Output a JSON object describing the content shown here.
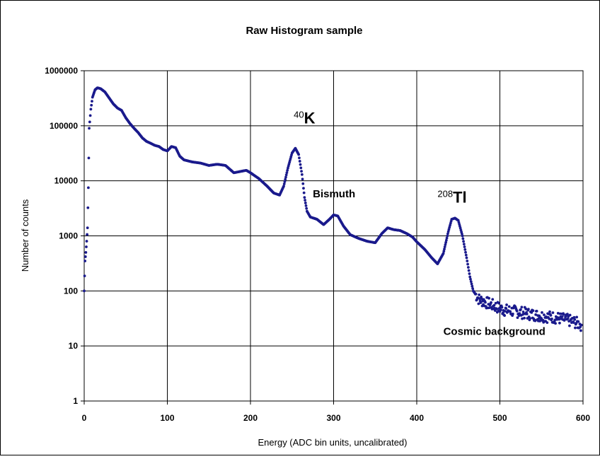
{
  "chart_data": {
    "type": "scatter",
    "title": "Raw Histogram sample",
    "xlabel": "Energy (ADC bin units, uncalibrated)",
    "ylabel": "Number of counts",
    "xlim": [
      0,
      600
    ],
    "ylim": [
      1,
      1000000
    ],
    "yscale": "log",
    "grid": true,
    "x_ticks": [
      "0",
      "100",
      "200",
      "300",
      "400",
      "500",
      "600"
    ],
    "y_ticks": [
      "1",
      "10",
      "100",
      "1000",
      "10000",
      "100000",
      "1000000"
    ],
    "marker_color": "#1a1a8c",
    "series_points": [
      [
        0,
        100
      ],
      [
        1,
        350
      ],
      [
        2,
        500
      ],
      [
        3,
        800
      ],
      [
        4,
        1400
      ],
      [
        5,
        7500
      ],
      [
        6,
        90000
      ],
      [
        8,
        200000
      ],
      [
        10,
        330000
      ],
      [
        13,
        450000
      ],
      [
        16,
        490000
      ],
      [
        20,
        470000
      ],
      [
        25,
        410000
      ],
      [
        30,
        320000
      ],
      [
        35,
        250000
      ],
      [
        40,
        210000
      ],
      [
        45,
        190000
      ],
      [
        50,
        140000
      ],
      [
        55,
        110000
      ],
      [
        60,
        90000
      ],
      [
        65,
        75000
      ],
      [
        70,
        60000
      ],
      [
        75,
        52000
      ],
      [
        80,
        48000
      ],
      [
        85,
        44000
      ],
      [
        90,
        42000
      ],
      [
        95,
        37000
      ],
      [
        100,
        35000
      ],
      [
        105,
        42000
      ],
      [
        110,
        40000
      ],
      [
        115,
        28000
      ],
      [
        120,
        24000
      ],
      [
        130,
        22000
      ],
      [
        140,
        21000
      ],
      [
        150,
        19000
      ],
      [
        160,
        20000
      ],
      [
        170,
        19000
      ],
      [
        180,
        14000
      ],
      [
        190,
        15000
      ],
      [
        195,
        15500
      ],
      [
        200,
        14000
      ],
      [
        210,
        11000
      ],
      [
        220,
        8000
      ],
      [
        228,
        6000
      ],
      [
        235,
        5500
      ],
      [
        240,
        8000
      ],
      [
        245,
        17000
      ],
      [
        250,
        32000
      ],
      [
        254,
        39000
      ],
      [
        258,
        30000
      ],
      [
        262,
        13000
      ],
      [
        265,
        5000
      ],
      [
        268,
        2800
      ],
      [
        272,
        2200
      ],
      [
        280,
        2000
      ],
      [
        288,
        1600
      ],
      [
        295,
        2000
      ],
      [
        300,
        2400
      ],
      [
        305,
        2300
      ],
      [
        312,
        1500
      ],
      [
        320,
        1050
      ],
      [
        330,
        900
      ],
      [
        340,
        800
      ],
      [
        350,
        750
      ],
      [
        358,
        1100
      ],
      [
        365,
        1400
      ],
      [
        372,
        1300
      ],
      [
        380,
        1250
      ],
      [
        388,
        1100
      ],
      [
        395,
        950
      ],
      [
        400,
        780
      ],
      [
        410,
        560
      ],
      [
        418,
        400
      ],
      [
        425,
        310
      ],
      [
        432,
        480
      ],
      [
        438,
        1200
      ],
      [
        442,
        2000
      ],
      [
        446,
        2100
      ],
      [
        450,
        1900
      ],
      [
        455,
        1000
      ],
      [
        460,
        400
      ],
      [
        464,
        180
      ],
      [
        468,
        100
      ],
      [
        475,
        70
      ],
      [
        485,
        60
      ],
      [
        495,
        52
      ],
      [
        505,
        45
      ],
      [
        520,
        42
      ],
      [
        535,
        38
      ],
      [
        550,
        35
      ],
      [
        565,
        33
      ],
      [
        580,
        30
      ],
      [
        590,
        27
      ],
      [
        598,
        24
      ]
    ],
    "annotations": [
      {
        "sup": "40",
        "text": "K",
        "x": 252,
        "y": 110000
      },
      {
        "text": "Bismuth",
        "x": 275,
        "y": 5000
      },
      {
        "sup": "208",
        "text": "Tl",
        "x": 425,
        "y": 4000
      },
      {
        "text": "Cosmic background",
        "x": 432,
        "y": 16
      }
    ]
  }
}
